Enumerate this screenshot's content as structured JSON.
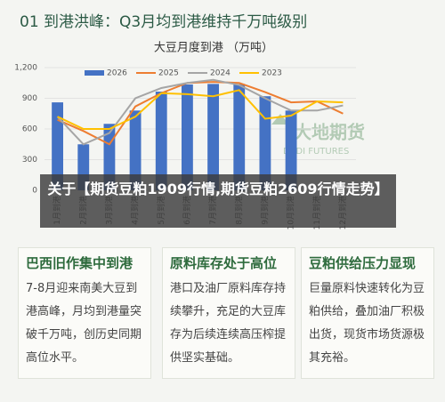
{
  "header": {
    "title": "01 到港洪峰：Q3月均到港维持千万吨级别"
  },
  "chart_data": {
    "type": "bar",
    "title": "大豆月度到港 （万吨）",
    "categories": [
      "1月到港",
      "2月到港",
      "3月到港",
      "4月到港",
      "5月到港",
      "6月到港",
      "7月到港",
      "8月到港",
      "9月到港",
      "10月到港",
      "11月到港",
      "12月到港"
    ],
    "series": [
      {
        "name": "2026",
        "type": "bar",
        "color": "#4472c4",
        "values": [
          860,
          450,
          650,
          780,
          965,
          1035,
          1040,
          1040,
          920,
          780,
          null,
          null
        ]
      },
      {
        "name": "2025",
        "type": "line",
        "color": "#ed7d31",
        "values": [
          690,
          580,
          450,
          820,
          950,
          1050,
          1060,
          1050,
          960,
          860,
          870,
          750
        ]
      },
      {
        "name": "2024",
        "type": "line",
        "color": "#a5a5a5",
        "values": [
          720,
          450,
          560,
          900,
          1000,
          1050,
          1080,
          1030,
          900,
          780,
          780,
          830
        ]
      },
      {
        "name": "2023",
        "type": "line",
        "color": "#ffc000",
        "values": [
          720,
          600,
          600,
          720,
          950,
          940,
          920,
          980,
          700,
          730,
          870,
          860
        ]
      }
    ],
    "ylim": [
      0,
      1200
    ],
    "yticks": [
      0,
      300,
      600,
      900,
      {
        "value": 1200,
        "label": "1,200"
      }
    ],
    "grid": true,
    "legend": "top"
  },
  "watermark": {
    "cn": "大地期货",
    "en": "DADI FUTURES"
  },
  "overlay": {
    "text": "关于【期货豆粕1909行情,期货豆粕2609行情走势】"
  },
  "cards": [
    {
      "title": "巴西旧作集中到港",
      "body": "7-8月迎来南美大豆到港高峰，月均到港量突破千万吨，创历史同期高位水平。"
    },
    {
      "title": "原料库存处于高位",
      "body": "港口及油厂原料库存持续攀升，充足的大豆库存为后续连续高压榨提供坚实基础。"
    },
    {
      "title": "豆粕供给压力显现",
      "body": "巨量原料快速转化为豆粕供给，叠加油厂积极出货，现货市场货源极其充裕。"
    }
  ]
}
